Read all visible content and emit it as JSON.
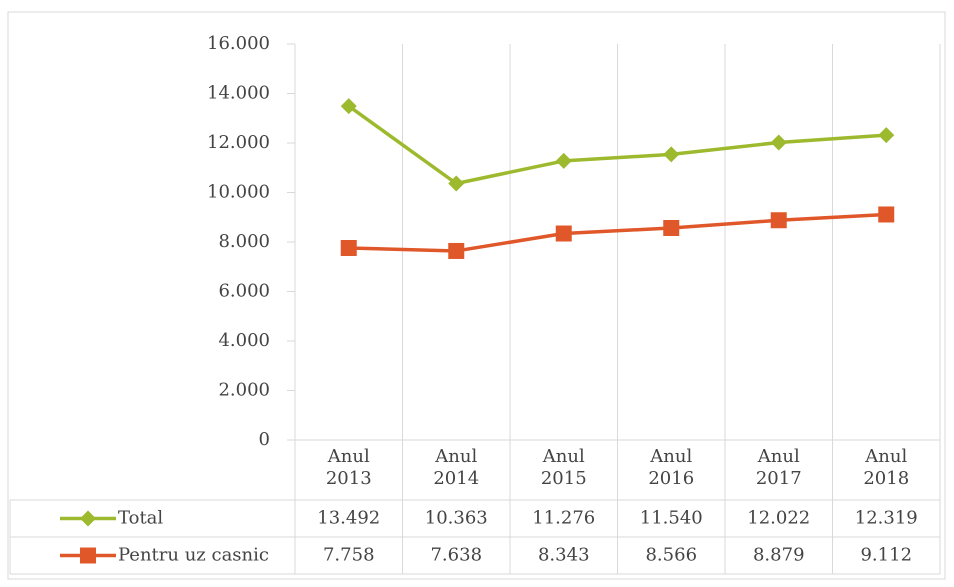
{
  "chart_data": {
    "type": "line",
    "categories": [
      "Anul 2013",
      "Anul 2014",
      "Anul 2015",
      "Anul 2016",
      "Anul 2017",
      "Anul 2018"
    ],
    "series": [
      {
        "name": "Total",
        "color": "#9dba2e",
        "marker": "diamond",
        "values": [
          13492,
          10363,
          11276,
          11540,
          12022,
          12319
        ],
        "value_labels": [
          "13.492",
          "10.363",
          "11.276",
          "11.540",
          "12.022",
          "12.319"
        ]
      },
      {
        "name": "Pentru uz casnic",
        "color": "#e0582a",
        "marker": "square",
        "values": [
          7758,
          7638,
          8343,
          8566,
          8879,
          9112
        ],
        "value_labels": [
          "7.758",
          "7.638",
          "8.343",
          "8.566",
          "8.879",
          "9.112"
        ]
      }
    ],
    "ylim": [
      0,
      16000
    ],
    "yticks": [
      0,
      {
        "value": 2000,
        "label": "2.000"
      },
      {
        "value": 4000,
        "label": "4.000"
      },
      {
        "value": 6000,
        "label": "6.000"
      },
      {
        "value": 8000,
        "label": "8.000"
      },
      {
        "value": 10000,
        "label": "10.000"
      },
      {
        "value": 12000,
        "label": "12.000"
      },
      {
        "value": 14000,
        "label": "14.000"
      },
      {
        "value": 16000,
        "label": "16.000"
      }
    ],
    "grid": false,
    "legend": "table"
  }
}
